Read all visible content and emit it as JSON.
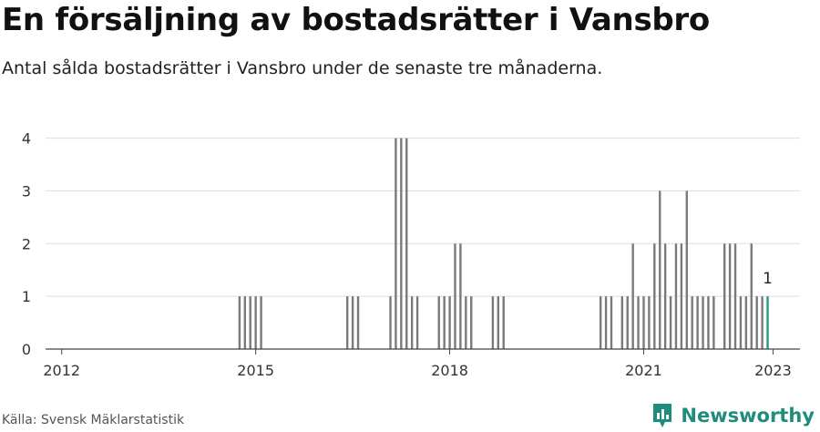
{
  "title": "En försäljning av bostadsrätter i Vansbro",
  "subtitle": "Antal sålda bostadsrätter i Vansbro under de senaste tre månaderna.",
  "source": "Källa: Svensk Mäklarstatistik",
  "brand": "Newsworthy",
  "colors": {
    "bar": "#7a7a7a",
    "highlight": "#1f9c88",
    "brand": "#1f8c7c",
    "grid": "#dddddd"
  },
  "chart_data": {
    "type": "bar",
    "x_axis": {
      "type": "date",
      "ticks": [
        "2012",
        "2015",
        "2018",
        "2021",
        "2023"
      ],
      "range": [
        "2011-10",
        "2023-06"
      ]
    },
    "y_axis": {
      "ticks": [
        0,
        1,
        2,
        3,
        4
      ],
      "ylim": [
        0,
        4.2
      ]
    },
    "grid": "horizontal",
    "highlight_label": "1",
    "series": [
      {
        "x": [
          "2014-10",
          "2014-11",
          "2014-12",
          "2015-01",
          "2015-02",
          "2016-06",
          "2016-07",
          "2016-08",
          "2017-02",
          "2017-03",
          "2017-04",
          "2017-05",
          "2017-06",
          "2017-07",
          "2017-11",
          "2017-12",
          "2018-01",
          "2018-02",
          "2018-03",
          "2018-04",
          "2018-05",
          "2018-09",
          "2018-10",
          "2018-11",
          "2020-05",
          "2020-06",
          "2020-07",
          "2020-09",
          "2020-10",
          "2020-11",
          "2020-12",
          "2021-01",
          "2021-02",
          "2021-03",
          "2021-04",
          "2021-05",
          "2021-06",
          "2021-07",
          "2021-08",
          "2021-09",
          "2021-10",
          "2021-11",
          "2021-12",
          "2022-01",
          "2022-02",
          "2022-04",
          "2022-05",
          "2022-06",
          "2022-07",
          "2022-08",
          "2022-09",
          "2022-10",
          "2022-11",
          "2022-12"
        ],
        "values": [
          1,
          1,
          1,
          1,
          1,
          1,
          1,
          1,
          1,
          4,
          4,
          4,
          1,
          1,
          1,
          1,
          1,
          2,
          2,
          1,
          1,
          1,
          1,
          1,
          1,
          1,
          1,
          1,
          1,
          2,
          1,
          1,
          1,
          2,
          3,
          2,
          1,
          2,
          2,
          3,
          1,
          1,
          1,
          1,
          1,
          2,
          2,
          2,
          1,
          1,
          2,
          1,
          1,
          1
        ]
      }
    ]
  }
}
